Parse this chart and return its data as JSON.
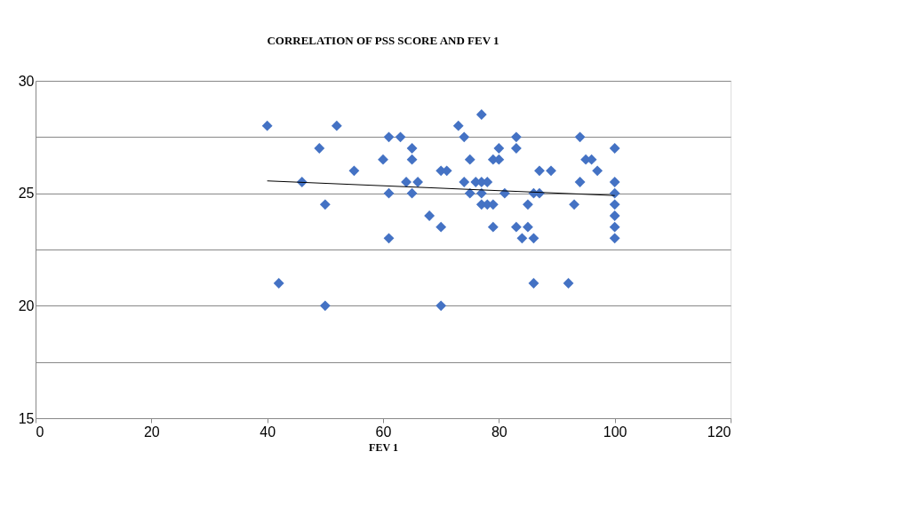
{
  "chart_data": {
    "type": "scatter",
    "title": "CORRELATION OF  PSS SCORE AND FEV 1",
    "xlabel": "FEV 1",
    "grid": "y",
    "xlim": [
      0,
      120
    ],
    "xticks": [
      0,
      20,
      40,
      60,
      80,
      100,
      120
    ],
    "ylim": [
      15,
      30
    ],
    "yticks": [
      {
        "value": 15,
        "label": "15"
      },
      {
        "value": 17.5,
        "label": null
      },
      {
        "value": 20,
        "label": "20"
      },
      {
        "value": 22.5,
        "label": null
      },
      {
        "value": 25,
        "label": "25"
      },
      {
        "value": 27.5,
        "label": null
      },
      {
        "value": 30,
        "label": "30"
      }
    ],
    "series": [
      {
        "type": "scatter",
        "marker": "diamond",
        "color": "#4472c4",
        "x": [
          40,
          42,
          46,
          49,
          50,
          50,
          52,
          55,
          60,
          61,
          61,
          61,
          63,
          64,
          65,
          65,
          65,
          66,
          68,
          70,
          70,
          70,
          71,
          73,
          74,
          74,
          75,
          75,
          76,
          77,
          77,
          77,
          77,
          78,
          78,
          79,
          79,
          79,
          80,
          80,
          81,
          83,
          83,
          83,
          84,
          85,
          85,
          86,
          86,
          86,
          87,
          87,
          89,
          92,
          93,
          94,
          94,
          95,
          96,
          97,
          100,
          100,
          100,
          100,
          100,
          100,
          100
        ],
        "values": [
          28,
          21,
          25.5,
          27,
          24.5,
          20,
          28,
          26,
          26.5,
          27.5,
          25,
          23,
          27.5,
          25.5,
          27,
          26.5,
          25,
          25.5,
          24,
          26,
          23.5,
          20,
          26,
          28,
          27.5,
          25.5,
          26.5,
          25,
          25.5,
          28.5,
          25.5,
          24.5,
          25,
          25.5,
          24.5,
          26.5,
          23.5,
          24.5,
          27,
          26.5,
          25,
          27.5,
          27,
          23.5,
          23,
          24.5,
          23.5,
          25,
          23,
          21,
          26,
          25,
          26,
          21,
          24.5,
          27.5,
          25.5,
          26.5,
          26.5,
          26,
          27,
          25.5,
          25,
          24.5,
          24,
          23.5,
          23
        ]
      },
      {
        "type": "line",
        "marker": "none",
        "color": "#000000",
        "x": [
          40,
          100
        ],
        "values": [
          25.55,
          24.9
        ]
      }
    ]
  }
}
